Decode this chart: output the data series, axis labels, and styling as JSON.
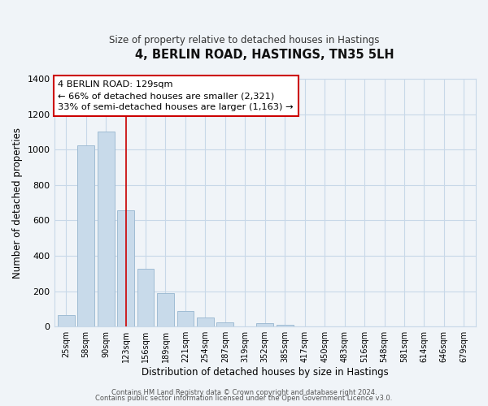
{
  "title": "4, BERLIN ROAD, HASTINGS, TN35 5LH",
  "subtitle": "Size of property relative to detached houses in Hastings",
  "xlabel": "Distribution of detached houses by size in Hastings",
  "ylabel": "Number of detached properties",
  "bar_labels": [
    "25sqm",
    "58sqm",
    "90sqm",
    "123sqm",
    "156sqm",
    "189sqm",
    "221sqm",
    "254sqm",
    "287sqm",
    "319sqm",
    "352sqm",
    "385sqm",
    "417sqm",
    "450sqm",
    "483sqm",
    "516sqm",
    "548sqm",
    "581sqm",
    "614sqm",
    "646sqm",
    "679sqm"
  ],
  "bar_values": [
    65,
    1025,
    1100,
    655,
    325,
    190,
    90,
    50,
    25,
    0,
    20,
    10,
    0,
    0,
    0,
    0,
    0,
    0,
    0,
    0,
    0
  ],
  "bar_color": "#c8daea",
  "bar_edge_color": "#a0bcd4",
  "vline_x": 3,
  "vline_color": "#cc0000",
  "annotation_line1": "4 BERLIN ROAD: 129sqm",
  "annotation_line2": "← 66% of detached houses are smaller (2,321)",
  "annotation_line3": "33% of semi-detached houses are larger (1,163) →",
  "annotation_box_color": "#ffffff",
  "annotation_box_edge": "#cc0000",
  "ylim": [
    0,
    1400
  ],
  "yticks": [
    0,
    200,
    400,
    600,
    800,
    1000,
    1200,
    1400
  ],
  "footer_line1": "Contains HM Land Registry data © Crown copyright and database right 2024.",
  "footer_line2": "Contains public sector information licensed under the Open Government Licence v3.0.",
  "background_color": "#f0f4f8",
  "grid_color": "#c8d8e8"
}
